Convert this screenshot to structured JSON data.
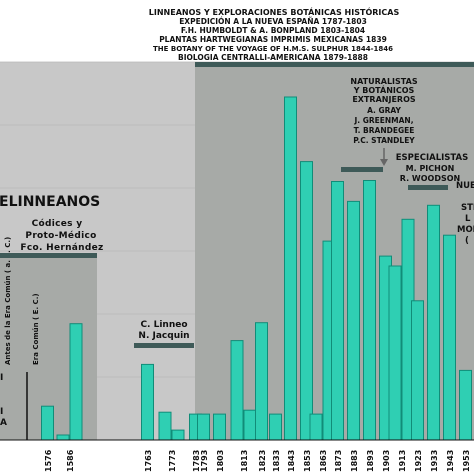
{
  "chart_data": {
    "type": "bar",
    "colors": {
      "bar": "#2fcfb3",
      "bar_stroke": "#118c78",
      "plot_background": "#c8c8c8",
      "era_band": "#a7aaa7",
      "section_bar": "#3e5a58",
      "text": "#111111"
    },
    "categories": [
      "1576",
      "1586",
      "1763",
      "1773",
      "1783",
      "1793",
      "1803",
      "1813",
      "1823",
      "1833",
      "1843",
      "1853",
      "1863",
      "1873",
      "1883",
      "1893",
      "1903",
      "1913",
      "1923",
      "1933",
      "1943",
      "1953"
    ],
    "categories_visible_with_partial_bars": [],
    "bar_groups": [
      {
        "label": "1576",
        "values": [
          34
        ]
      },
      {
        "label": "1586",
        "values": [
          5,
          117
        ]
      },
      {
        "label": "1763",
        "values": [
          76
        ]
      },
      {
        "label": "1773",
        "values": [
          28,
          10
        ]
      },
      {
        "label": "1783",
        "values": [
          26
        ]
      },
      {
        "label": "1793",
        "values": [
          26
        ]
      },
      {
        "label": "1803",
        "values": [
          26
        ]
      },
      {
        "label": "1813",
        "values": [
          100,
          30
        ]
      },
      {
        "label": "1823",
        "values": [
          118
        ]
      },
      {
        "label": "1833",
        "values": [
          26
        ]
      },
      {
        "label": "1843",
        "values": [
          345
        ]
      },
      {
        "label": "1853",
        "values": [
          280
        ]
      },
      {
        "label": "1863",
        "values": [
          26,
          200
        ]
      },
      {
        "label": "1873",
        "values": [
          260
        ]
      },
      {
        "label": "1883",
        "values": [
          240
        ]
      },
      {
        "label": "1893",
        "values": [
          261
        ]
      },
      {
        "label": "1903",
        "values": [
          185
        ]
      },
      {
        "label": "1913",
        "values": [
          175,
          222
        ]
      },
      {
        "label": "1923",
        "values": [
          140
        ]
      },
      {
        "label": "1933",
        "values": [
          236
        ]
      },
      {
        "label": "1943",
        "values": [
          206
        ]
      },
      {
        "label": "1953",
        "values": [
          70
        ]
      }
    ],
    "title": "",
    "xlabel": "",
    "ylabel": "",
    "grid": true,
    "era_labels": {
      "before": "Antes de la Era Común ( a. E. C.)",
      "after": "Era Común ( E. C.)"
    },
    "sections": {
      "prelinneanos": "ELINNEANOS",
      "codices": [
        "Códices y",
        "Proto-Médico",
        "Fco. Hernández"
      ],
      "linneo": [
        "C. Linneo",
        "N. Jacquin"
      ],
      "exploraciones": [
        "Linneanos y exploraciones botánicas históricas",
        "Expedición a la Nueva España 1787-1803",
        "F.H. Humboldt & A. Bonpland 1803-1804",
        "Plantas Hartwegianas imprimis Mexicanas 1839",
        "The Botany of the Voyage of H.M.S. Sulphur 1844-1846",
        "Biologia Centralli-Americana 1879-1888"
      ],
      "naturalistas": [
        "Naturalistas",
        "y botánicos",
        "extranjeros",
        "A. Gray",
        "J. Greenman,",
        "T. Brandegee",
        "P.C. Standley"
      ],
      "especialistas": [
        "Especialistas",
        "M. Pichon",
        "R. Woodson"
      ],
      "right_partial": [
        "Nuev",
        "Ste",
        "L",
        "Mor",
        "("
      ],
      "left_partial": [
        "I",
        "I",
        "A"
      ]
    }
  }
}
